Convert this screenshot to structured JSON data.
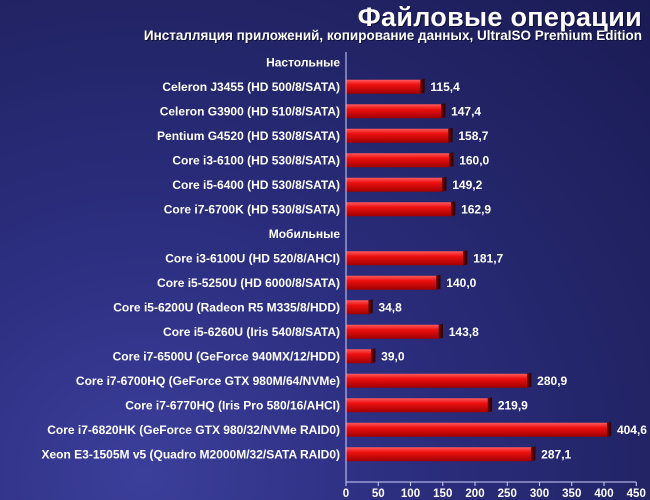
{
  "chart_data": {
    "type": "bar",
    "orientation": "horizontal",
    "title": "Файловые операции",
    "subtitle": "Инсталляция приложений, копирование данных, UltraISO Premium Edition",
    "xlim": [
      0,
      450
    ],
    "xticks": [
      0,
      50,
      100,
      150,
      200,
      250,
      300,
      350,
      400,
      450
    ],
    "grid": false,
    "groups": [
      {
        "label": "Настольные",
        "categories": [
          "Celeron J3455 (HD 500/8/SATA)",
          "Celeron G3900 (HD 510/8/SATA)",
          "Pentium G4520 (HD 530/8/SATA)",
          "Core i3-6100 (HD 530/8/SATA)",
          "Core i5-6400 (HD 530/8/SATA)",
          "Core i7-6700K (HD 530/8/SATA)"
        ],
        "values": [
          115.4,
          147.4,
          158.7,
          160.0,
          149.2,
          162.9
        ],
        "value_labels": [
          "115,4",
          "147,4",
          "158,7",
          "160,0",
          "149,2",
          "162,9"
        ]
      },
      {
        "label": "Мобильные",
        "categories": [
          "Core i3-6100U (HD 520/8/AHCI)",
          "Core i5-5250U (HD 6000/8/SATA)",
          "Core i5-6200U (Radeon R5 M335/8/HDD)",
          "Core i5-6260U (Iris 540/8/SATA)",
          "Core i7-6500U (GeForce 940MX/12/HDD)",
          "Core i7-6700HQ (GeForce GTX 980M/64/NVMe)",
          "Core i7-6770HQ (Iris Pro 580/16/AHCI)",
          "Core i7-6820HK (GeForce GTX 980/32/NVMe RAID0)",
          "Xeon E3-1505M v5 (Quadro M2000M/32/SATA RAID0)"
        ],
        "values": [
          181.7,
          140.0,
          34.8,
          143.8,
          39.0,
          280.9,
          219.9,
          404.6,
          287.1
        ],
        "value_labels": [
          "181,7",
          "140,0",
          "34,8",
          "143,8",
          "39,0",
          "280,9",
          "219,9",
          "404,6",
          "287,1"
        ]
      }
    ],
    "colors": {
      "bar_light": "#ff3a3a",
      "bar_mid": "#d80000",
      "bar_dark": "#5a0000",
      "background": "#232468"
    }
  }
}
